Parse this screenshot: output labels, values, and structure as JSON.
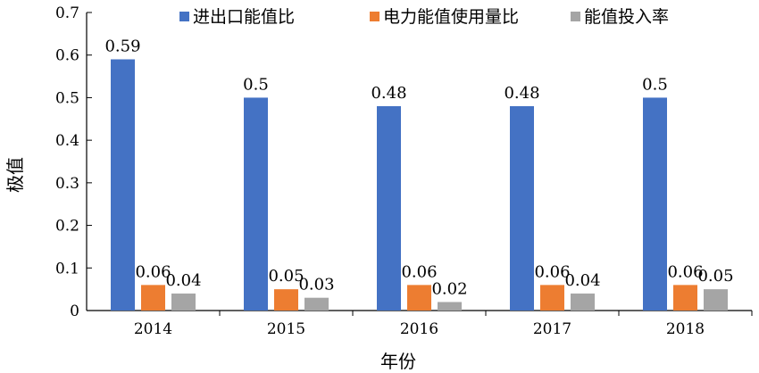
{
  "chart_data": {
    "type": "bar",
    "categories": [
      "2014",
      "2015",
      "2016",
      "2017",
      "2018"
    ],
    "series": [
      {
        "name": "进出口能值比",
        "values": [
          0.59,
          0.5,
          0.48,
          0.48,
          0.5
        ],
        "labels": [
          "0.59",
          "0.5",
          "0.48",
          "0.48",
          "0.5"
        ],
        "color": "#4472c4"
      },
      {
        "name": "电力能值使用量比",
        "values": [
          0.06,
          0.05,
          0.06,
          0.06,
          0.06
        ],
        "labels": [
          "0.06",
          "0.05",
          "0.06",
          "0.06",
          "0.06"
        ],
        "color": "#ed7d31"
      },
      {
        "name": "能值投入率",
        "values": [
          0.04,
          0.03,
          0.02,
          0.04,
          0.05
        ],
        "labels": [
          "0.04",
          "0.03",
          "0.02",
          "0.04",
          "0.05"
        ],
        "color": "#a5a5a5"
      }
    ],
    "xlabel": "年份",
    "ylabel": "极值",
    "ylim": [
      0,
      0.7
    ],
    "yticks": [
      "0",
      "0.1",
      "0.2",
      "0.3",
      "0.4",
      "0.5",
      "0.6",
      "0.7"
    ],
    "grid": false,
    "legend_position": "top"
  }
}
